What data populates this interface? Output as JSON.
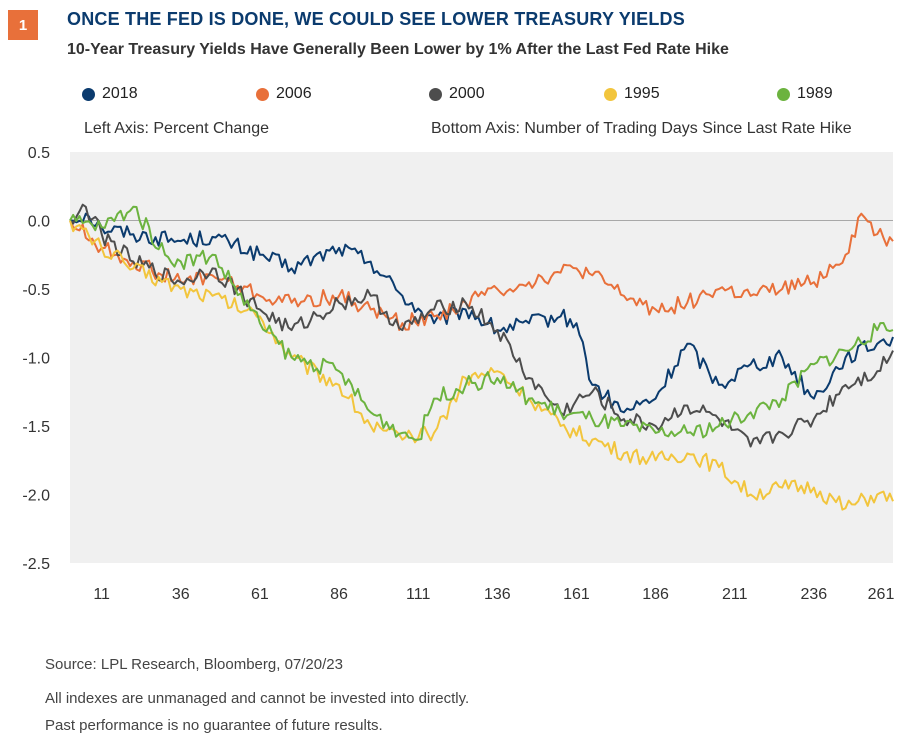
{
  "header": {
    "badge": "1",
    "title": "ONCE THE FED IS DONE, WE COULD SEE LOWER TREASURY YIELDS",
    "subtitle": "10-Year Treasury Yields Have Generally Been Lower by 1% After the Last Fed Rate Hike"
  },
  "notes": {
    "left_axis": "Left Axis: Percent Change",
    "bottom_axis": "Bottom Axis: Number of Trading Days Since Last Rate Hike"
  },
  "footer": {
    "source": "Source: LPL Research, Bloomberg,  07/20/23",
    "disclaimer1": "All indexes are unmanaged and cannot be invested into directly.",
    "disclaimer2": "Past performance is no guarantee of future results."
  },
  "colors": {
    "2018": "#0b3b6e",
    "2006": "#e8703a",
    "2000": "#4d4d4d",
    "1995": "#f2c53d",
    "1989": "#6cb33f",
    "plot_bg": "#f0f0f0",
    "badge": "#e8703a"
  },
  "chart_data": {
    "type": "line",
    "title": "10-Year Treasury Yields Have Generally Been Lower by 1% After the Last Fed Rate Hike",
    "xlabel": "",
    "ylabel": "",
    "xlim": [
      1,
      261
    ],
    "ylim": [
      -2.5,
      0.5
    ],
    "x_ticks": [
      11,
      36,
      61,
      86,
      111,
      136,
      161,
      186,
      211,
      236,
      261
    ],
    "y_ticks": [
      0.5,
      0.0,
      -0.5,
      -1.0,
      -1.5,
      -2.0,
      -2.5
    ],
    "y_tick_labels": [
      "0.5",
      "0.0",
      "-0.5",
      "-1.0",
      "-1.5",
      "-2.0",
      "-2.5"
    ],
    "grid": false,
    "zero_line": true,
    "legend_position": "top",
    "series": [
      {
        "name": "2018",
        "color": "#0b3b6e",
        "x": [
          1,
          6,
          11,
          21,
          36,
          46,
          61,
          71,
          86,
          96,
          106,
          116,
          126,
          136,
          146,
          156,
          161,
          166,
          176,
          186,
          196,
          206,
          216,
          226,
          236,
          246,
          256,
          261
        ],
        "y": [
          0,
          0.05,
          -0.05,
          -0.1,
          -0.15,
          -0.12,
          -0.25,
          -0.35,
          -0.2,
          -0.3,
          -0.55,
          -0.75,
          -0.65,
          -0.8,
          -0.75,
          -0.7,
          -0.75,
          -1.2,
          -1.4,
          -1.3,
          -0.9,
          -1.2,
          -1.05,
          -1.0,
          -1.3,
          -1.0,
          -0.9,
          -0.85
        ]
      },
      {
        "name": "2006",
        "color": "#e8703a",
        "x": [
          1,
          11,
          21,
          36,
          46,
          61,
          71,
          86,
          96,
          106,
          116,
          126,
          136,
          146,
          156,
          161,
          166,
          176,
          186,
          196,
          206,
          216,
          226,
          236,
          246,
          251,
          256,
          261
        ],
        "y": [
          0,
          -0.2,
          -0.3,
          -0.45,
          -0.4,
          -0.55,
          -0.6,
          -0.55,
          -0.65,
          -0.75,
          -0.7,
          -0.6,
          -0.5,
          -0.45,
          -0.38,
          -0.35,
          -0.4,
          -0.55,
          -0.65,
          -0.6,
          -0.5,
          -0.55,
          -0.5,
          -0.45,
          -0.25,
          0.05,
          -0.1,
          -0.15
        ]
      },
      {
        "name": "2000",
        "color": "#4d4d4d",
        "x": [
          1,
          6,
          11,
          21,
          36,
          46,
          61,
          71,
          86,
          96,
          106,
          116,
          126,
          136,
          146,
          156,
          166,
          176,
          186,
          196,
          206,
          216,
          226,
          236,
          246,
          256,
          261
        ],
        "y": [
          0,
          0.1,
          -0.1,
          -0.3,
          -0.45,
          -0.35,
          -0.65,
          -0.8,
          -0.6,
          -0.55,
          -0.8,
          -0.65,
          -0.6,
          -0.8,
          -1.15,
          -1.4,
          -1.25,
          -1.45,
          -1.5,
          -1.35,
          -1.45,
          -1.65,
          -1.55,
          -1.45,
          -1.2,
          -1.1,
          -0.95
        ]
      },
      {
        "name": "1995",
        "color": "#f2c53d",
        "x": [
          1,
          11,
          21,
          36,
          46,
          61,
          71,
          86,
          96,
          106,
          116,
          126,
          136,
          146,
          156,
          166,
          176,
          186,
          196,
          206,
          216,
          226,
          236,
          246,
          256,
          261
        ],
        "y": [
          0,
          -0.2,
          -0.35,
          -0.5,
          -0.55,
          -0.7,
          -1.0,
          -1.2,
          -1.5,
          -1.6,
          -1.55,
          -1.15,
          -1.1,
          -1.3,
          -1.5,
          -1.6,
          -1.7,
          -1.75,
          -1.7,
          -1.8,
          -2.0,
          -1.95,
          -1.95,
          -2.1,
          -2.0,
          -2.05
        ]
      },
      {
        "name": "1989",
        "color": "#6cb33f",
        "x": [
          1,
          11,
          21,
          31,
          36,
          46,
          61,
          71,
          86,
          96,
          106,
          111,
          116,
          126,
          136,
          146,
          156,
          166,
          176,
          186,
          196,
          206,
          216,
          226,
          236,
          246,
          256,
          261
        ],
        "y": [
          0,
          -0.05,
          0.1,
          -0.25,
          -0.3,
          -0.25,
          -0.75,
          -1.0,
          -1.1,
          -1.4,
          -1.55,
          -1.6,
          -1.3,
          -1.2,
          -1.15,
          -1.3,
          -1.4,
          -1.45,
          -1.5,
          -1.55,
          -1.55,
          -1.5,
          -1.4,
          -1.3,
          -1.05,
          -0.95,
          -0.8,
          -0.8
        ]
      }
    ]
  }
}
